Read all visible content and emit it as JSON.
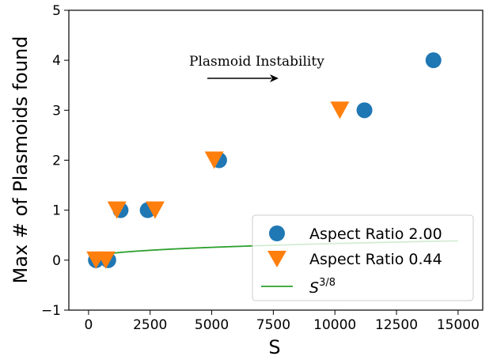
{
  "chart_data": {
    "type": "scatter",
    "xlabel": "S",
    "ylabel": "Max # of Plasmoids found",
    "xlim": [
      -800,
      16000
    ],
    "ylim": [
      -1,
      5
    ],
    "xticks": [
      0,
      2500,
      5000,
      7500,
      10000,
      12500,
      15000
    ],
    "yticks": [
      -1,
      0,
      1,
      2,
      3,
      4,
      5
    ],
    "grid": false,
    "legend_position": "bottom-right",
    "series": [
      {
        "name": "Aspect Ratio 2.00",
        "marker": "circle",
        "color": "#1f77b4",
        "points": [
          [
            300,
            0
          ],
          [
            800,
            0
          ],
          [
            1300,
            1
          ],
          [
            2400,
            1
          ],
          [
            5300,
            2
          ],
          [
            11200,
            3
          ],
          [
            14000,
            4
          ]
        ]
      },
      {
        "name": "Aspect Ratio 0.44",
        "marker": "triangle-down",
        "color": "#ff7f0e",
        "points": [
          [
            300,
            0
          ],
          [
            700,
            0
          ],
          [
            1150,
            1
          ],
          [
            2700,
            1
          ],
          [
            5100,
            2
          ],
          [
            10200,
            3
          ]
        ]
      },
      {
        "name": "S",
        "name_sup": "3/8",
        "marker": "line",
        "color": "#2ca02c",
        "function": "0.0105*S^(3/8)",
        "x_range": [
          100,
          15000
        ]
      }
    ],
    "annotations": [
      {
        "text": "Plasmoid Instability",
        "arrow": true,
        "at": [
          5600,
          3.6
        ]
      }
    ]
  }
}
